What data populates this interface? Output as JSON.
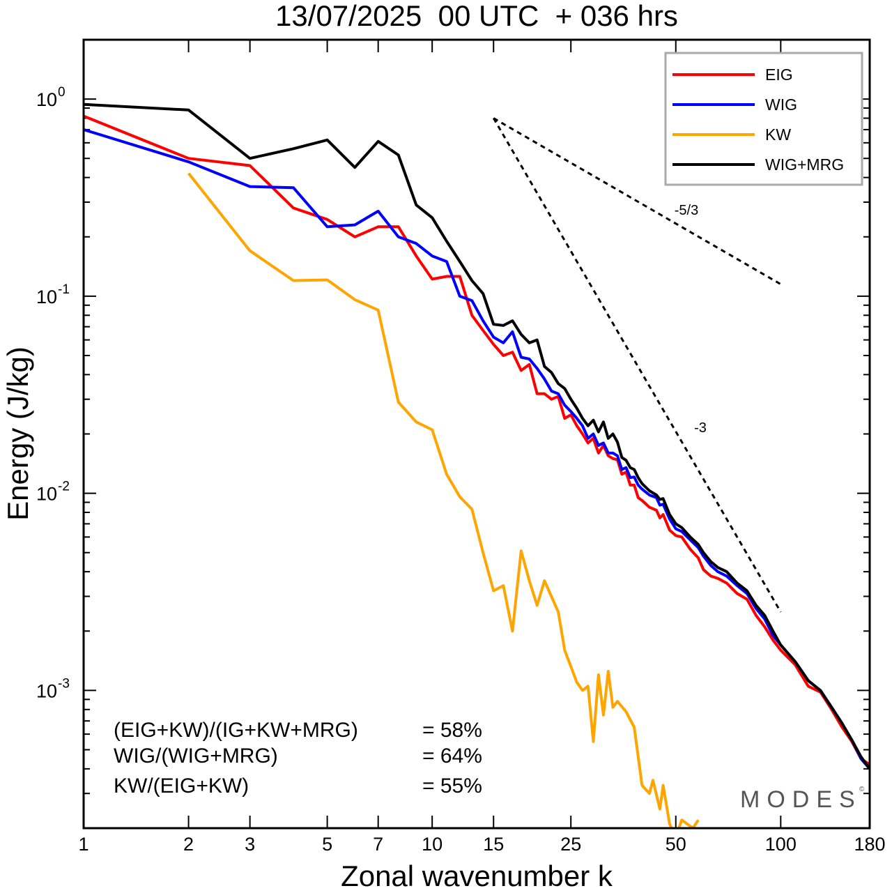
{
  "chart_data": {
    "type": "line",
    "title": "13/07/2025  00 UTC  + 036 hrs",
    "xlabel": "Zonal wavenumber k",
    "ylabel": "Energy (J/kg)",
    "xscale": "log",
    "yscale": "log",
    "xlim": [
      1,
      180
    ],
    "ylim": [
      0.0002,
      2
    ],
    "x_ticks": [
      1,
      2,
      3,
      5,
      7,
      10,
      15,
      25,
      50,
      100,
      180
    ],
    "y_ticks": [
      {
        "base": "10",
        "exp": "0",
        "value": 1
      },
      {
        "base": "10",
        "exp": "-1",
        "value": 0.1
      },
      {
        "base": "10",
        "exp": "-2",
        "value": 0.01
      },
      {
        "base": "10",
        "exp": "-3",
        "value": 0.001
      }
    ],
    "legend_position": "top-right",
    "series": [
      {
        "name": "EIG",
        "color": "#ff0000",
        "points": [
          [
            1,
            0.82
          ],
          [
            2,
            0.5
          ],
          [
            3,
            0.46
          ],
          [
            4,
            0.28
          ],
          [
            5,
            0.245
          ],
          [
            6,
            0.2
          ],
          [
            7,
            0.225
          ],
          [
            8,
            0.225
          ],
          [
            9,
            0.16
          ],
          [
            10,
            0.122
          ],
          [
            11,
            0.126
          ],
          [
            12,
            0.126
          ],
          [
            13,
            0.08
          ],
          [
            14,
            0.067
          ],
          [
            15,
            0.057
          ],
          [
            16,
            0.05
          ],
          [
            17,
            0.052
          ],
          [
            18,
            0.042
          ],
          [
            19,
            0.045
          ],
          [
            20,
            0.032
          ],
          [
            21,
            0.032
          ],
          [
            22,
            0.03
          ],
          [
            23,
            0.031
          ],
          [
            24,
            0.024
          ],
          [
            25,
            0.025
          ],
          [
            26,
            0.022
          ],
          [
            27,
            0.02
          ],
          [
            28,
            0.018
          ],
          [
            29,
            0.019
          ],
          [
            30,
            0.016
          ],
          [
            31,
            0.0175
          ],
          [
            32,
            0.0155
          ],
          [
            33,
            0.015
          ],
          [
            34,
            0.0148
          ],
          [
            35,
            0.0125
          ],
          [
            36,
            0.0128
          ],
          [
            37,
            0.011
          ],
          [
            38,
            0.011
          ],
          [
            39,
            0.0095
          ],
          [
            40,
            0.0092
          ],
          [
            42,
            0.0085
          ],
          [
            44,
            0.0082
          ],
          [
            45,
            0.0075
          ],
          [
            46,
            0.0078
          ],
          [
            48,
            0.0065
          ],
          [
            50,
            0.0061
          ],
          [
            52,
            0.006
          ],
          [
            55,
            0.0052
          ],
          [
            58,
            0.0047
          ],
          [
            60,
            0.0041
          ],
          [
            63,
            0.0038
          ],
          [
            66,
            0.0037
          ],
          [
            70,
            0.0035
          ],
          [
            75,
            0.0031
          ],
          [
            80,
            0.0029
          ],
          [
            85,
            0.0024
          ],
          [
            90,
            0.0021
          ],
          [
            95,
            0.0018
          ],
          [
            100,
            0.0016
          ],
          [
            110,
            0.00135
          ],
          [
            120,
            0.00105
          ],
          [
            130,
            0.00098
          ],
          [
            140,
            0.0008
          ],
          [
            150,
            0.00065
          ],
          [
            160,
            0.00055
          ],
          [
            170,
            0.00045
          ],
          [
            180,
            0.00042
          ]
        ]
      },
      {
        "name": "WIG",
        "color": "#0000ff",
        "points": [
          [
            1,
            0.7
          ],
          [
            2,
            0.48
          ],
          [
            3,
            0.36
          ],
          [
            4,
            0.355
          ],
          [
            5,
            0.225
          ],
          [
            6,
            0.23
          ],
          [
            7,
            0.27
          ],
          [
            8,
            0.2
          ],
          [
            9,
            0.185
          ],
          [
            10,
            0.16
          ],
          [
            11,
            0.15
          ],
          [
            12,
            0.1
          ],
          [
            13,
            0.095
          ],
          [
            14,
            0.075
          ],
          [
            15,
            0.062
          ],
          [
            16,
            0.058
          ],
          [
            17,
            0.066
          ],
          [
            18,
            0.049
          ],
          [
            19,
            0.048
          ],
          [
            20,
            0.043
          ],
          [
            21,
            0.038
          ],
          [
            22,
            0.033
          ],
          [
            23,
            0.032
          ],
          [
            24,
            0.028
          ],
          [
            25,
            0.026
          ],
          [
            26,
            0.024
          ],
          [
            27,
            0.022
          ],
          [
            28,
            0.019
          ],
          [
            29,
            0.02
          ],
          [
            30,
            0.0175
          ],
          [
            31,
            0.018
          ],
          [
            32,
            0.016
          ],
          [
            33,
            0.016
          ],
          [
            34,
            0.0155
          ],
          [
            35,
            0.0132
          ],
          [
            36,
            0.0135
          ],
          [
            37,
            0.012
          ],
          [
            38,
            0.0121
          ],
          [
            39,
            0.011
          ],
          [
            40,
            0.0105
          ],
          [
            42,
            0.0098
          ],
          [
            44,
            0.0095
          ],
          [
            45,
            0.0087
          ],
          [
            46,
            0.0088
          ],
          [
            48,
            0.0074
          ],
          [
            50,
            0.0066
          ],
          [
            52,
            0.0064
          ],
          [
            55,
            0.0058
          ],
          [
            58,
            0.0053
          ],
          [
            60,
            0.0048
          ],
          [
            63,
            0.0043
          ],
          [
            66,
            0.004
          ],
          [
            70,
            0.0038
          ],
          [
            75,
            0.0034
          ],
          [
            80,
            0.0031
          ],
          [
            85,
            0.0026
          ],
          [
            90,
            0.0023
          ],
          [
            95,
            0.0019
          ],
          [
            100,
            0.0017
          ],
          [
            110,
            0.0014
          ],
          [
            120,
            0.00112
          ],
          [
            130,
            0.001
          ],
          [
            140,
            0.00082
          ],
          [
            150,
            0.00068
          ],
          [
            160,
            0.00056
          ],
          [
            170,
            0.00045
          ],
          [
            180,
            0.0004
          ]
        ]
      },
      {
        "name": "KW",
        "color": "#ffa500",
        "points": [
          [
            2,
            0.42
          ],
          [
            3,
            0.17
          ],
          [
            4,
            0.12
          ],
          [
            5,
            0.121
          ],
          [
            6,
            0.096
          ],
          [
            7,
            0.085
          ],
          [
            8,
            0.029
          ],
          [
            9,
            0.023
          ],
          [
            10,
            0.021
          ],
          [
            11,
            0.0125
          ],
          [
            12,
            0.0096
          ],
          [
            13,
            0.0083
          ],
          [
            14,
            0.005
          ],
          [
            15,
            0.0032
          ],
          [
            16,
            0.0034
          ],
          [
            17,
            0.002
          ],
          [
            18,
            0.0051
          ],
          [
            19,
            0.0036
          ],
          [
            20,
            0.0027
          ],
          [
            21,
            0.0036
          ],
          [
            23,
            0.0025
          ],
          [
            24,
            0.0016
          ],
          [
            26,
            0.0011
          ],
          [
            27,
            0.001
          ],
          [
            28,
            0.00105
          ],
          [
            29,
            0.00055
          ],
          [
            30,
            0.0012
          ],
          [
            31,
            0.00075
          ],
          [
            32,
            0.00125
          ],
          [
            33,
            0.00082
          ],
          [
            34,
            0.00088
          ],
          [
            36,
            0.00078
          ],
          [
            38,
            0.00065
          ],
          [
            40,
            0.00033
          ],
          [
            42,
            0.0003
          ],
          [
            43,
            0.00035
          ],
          [
            45,
            0.00025
          ],
          [
            46,
            0.00033
          ],
          [
            48,
            0.00021
          ],
          [
            50,
            0.00018
          ],
          [
            52,
            0.00022
          ],
          [
            56,
            0.0002
          ],
          [
            58,
            0.00022
          ]
        ]
      },
      {
        "name": "WIG+MRG",
        "color": "#000000",
        "points": [
          [
            1,
            0.94
          ],
          [
            2,
            0.88
          ],
          [
            3,
            0.5
          ],
          [
            4,
            0.56
          ],
          [
            5,
            0.62
          ],
          [
            6,
            0.45
          ],
          [
            7,
            0.61
          ],
          [
            8,
            0.52
          ],
          [
            9,
            0.29
          ],
          [
            10,
            0.25
          ],
          [
            11,
            0.19
          ],
          [
            12,
            0.15
          ],
          [
            13,
            0.12
          ],
          [
            14,
            0.103
          ],
          [
            15,
            0.072
          ],
          [
            16,
            0.071
          ],
          [
            17,
            0.075
          ],
          [
            18,
            0.064
          ],
          [
            19,
            0.058
          ],
          [
            20,
            0.06
          ],
          [
            21,
            0.044
          ],
          [
            22,
            0.041
          ],
          [
            23,
            0.036
          ],
          [
            24,
            0.034
          ],
          [
            25,
            0.03
          ],
          [
            26,
            0.027
          ],
          [
            27,
            0.024
          ],
          [
            28,
            0.022
          ],
          [
            29,
            0.0235
          ],
          [
            30,
            0.0205
          ],
          [
            31,
            0.023
          ],
          [
            32,
            0.019
          ],
          [
            33,
            0.02
          ],
          [
            34,
            0.0182
          ],
          [
            35,
            0.0152
          ],
          [
            36,
            0.0147
          ],
          [
            37,
            0.0135
          ],
          [
            38,
            0.0132
          ],
          [
            39,
            0.012
          ],
          [
            40,
            0.0112
          ],
          [
            42,
            0.0103
          ],
          [
            44,
            0.0098
          ],
          [
            45,
            0.0093
          ],
          [
            46,
            0.0094
          ],
          [
            48,
            0.0078
          ],
          [
            50,
            0.007
          ],
          [
            52,
            0.0067
          ],
          [
            55,
            0.006
          ],
          [
            58,
            0.0055
          ],
          [
            60,
            0.005
          ],
          [
            63,
            0.0045
          ],
          [
            66,
            0.0042
          ],
          [
            70,
            0.004
          ],
          [
            75,
            0.0035
          ],
          [
            80,
            0.0032
          ],
          [
            85,
            0.0027
          ],
          [
            90,
            0.0024
          ],
          [
            95,
            0.002
          ],
          [
            100,
            0.0017
          ],
          [
            110,
            0.0014
          ],
          [
            120,
            0.00112
          ],
          [
            130,
            0.001
          ],
          [
            140,
            0.00082
          ],
          [
            150,
            0.00068
          ],
          [
            160,
            0.00056
          ],
          [
            170,
            0.00046
          ],
          [
            180,
            0.0004
          ]
        ]
      }
    ],
    "reference_lines": [
      {
        "label": "-5/3",
        "points": [
          [
            15,
            0.8
          ],
          [
            100,
            0.115
          ]
        ]
      },
      {
        "label": "-3",
        "points": [
          [
            15,
            0.8
          ],
          [
            100,
            0.0025
          ]
        ]
      }
    ],
    "annotations": [
      {
        "label": "(EIG+KW)/(IG+KW+MRG)",
        "value": "= 58%"
      },
      {
        "label": "WIG/(WIG+MRG)",
        "value": "= 64%"
      },
      {
        "label": "KW/(EIG+KW)",
        "value": "= 55%"
      }
    ],
    "watermark": "MODES",
    "watermark_mark": "©"
  }
}
